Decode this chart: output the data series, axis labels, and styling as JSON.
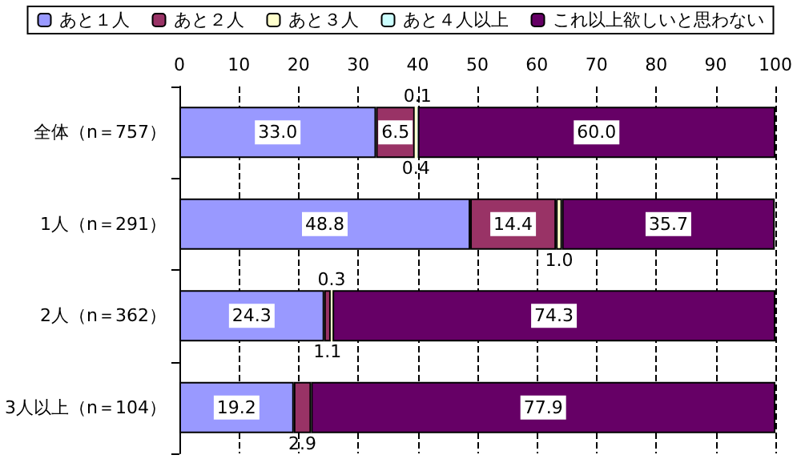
{
  "chart_data": {
    "type": "bar",
    "orientation": "horizontal",
    "stacked": true,
    "categories": [
      "全体（n＝757）",
      "1人（n＝291）",
      "2人（n＝362）",
      "3人以上（n＝104）"
    ],
    "series": [
      {
        "name": "あと１人",
        "color": "#9999ff",
        "values": [
          33.0,
          48.8,
          24.3,
          19.2
        ],
        "value_labels": [
          "33.0",
          "48.8",
          "24.3",
          "19.2"
        ]
      },
      {
        "name": "あと２人",
        "color": "#993366",
        "values": [
          6.5,
          14.4,
          1.1,
          2.9
        ],
        "value_labels": [
          "6.5",
          "14.4",
          "1.1",
          "2.9"
        ]
      },
      {
        "name": "あと３人",
        "color": "#ffffcc",
        "values": [
          0.4,
          1.0,
          0.3,
          null
        ],
        "value_labels": [
          "0.4",
          "1.0",
          "0.3",
          null
        ]
      },
      {
        "name": "あと４人以上",
        "color": "#ccffff",
        "values": [
          0.1,
          null,
          null,
          null
        ],
        "value_labels": [
          "0.1",
          null,
          null,
          null
        ]
      },
      {
        "name": "これ以上欲しいと思わない",
        "color": "#660066",
        "values": [
          60.0,
          35.7,
          74.3,
          77.9
        ],
        "value_labels": [
          "60.0",
          "35.7",
          "74.3",
          "77.9"
        ]
      }
    ],
    "xlim": [
      0,
      100
    ],
    "xticks": [
      0,
      10,
      20,
      30,
      40,
      50,
      60,
      70,
      80,
      90,
      100
    ],
    "grid": "x",
    "legend": "top"
  }
}
